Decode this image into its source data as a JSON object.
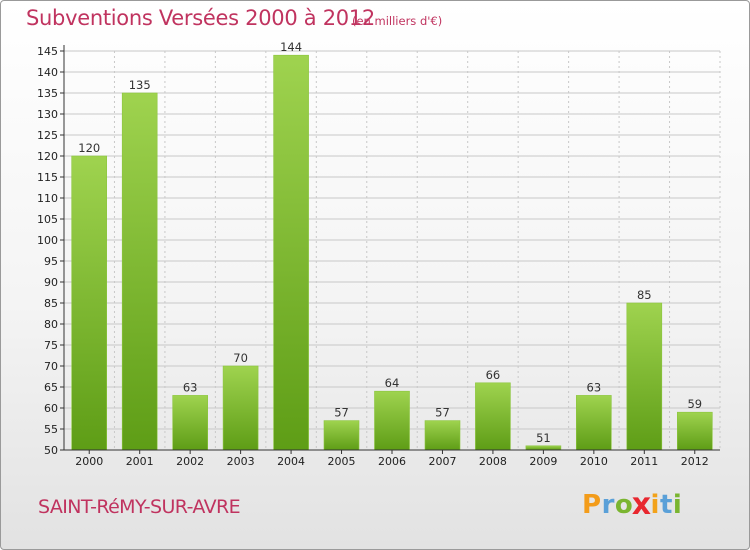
{
  "header": {
    "title": "Subventions Versées 2000 à 2012",
    "subtitle": "(en milliers d'€)"
  },
  "footer": {
    "commune": "SAINT-RéMY-SUR-AVRE",
    "brand_letters": [
      {
        "ch": "P",
        "color": "#f39c1a"
      },
      {
        "ch": "r",
        "color": "#5aa0d8"
      },
      {
        "ch": "o",
        "color": "#7ab530"
      },
      {
        "ch": "x",
        "color": "#e8272f"
      },
      {
        "ch": "i",
        "color": "#f2a21a"
      },
      {
        "ch": "t",
        "color": "#5aa0d8"
      },
      {
        "ch": "i",
        "color": "#7ab530"
      }
    ]
  },
  "colors": {
    "title": "#c0335f",
    "bar_light": "#9fd34f",
    "bar_dark": "#5e9d16",
    "grid": "#c8c8c8",
    "axis": "#333333"
  },
  "chart_data": {
    "type": "bar",
    "title": "Subventions Versées 2000 à 2012",
    "subtitle": "(en milliers d'€)",
    "xlabel": "",
    "ylabel": "",
    "categories": [
      "2000",
      "2001",
      "2002",
      "2003",
      "2004",
      "2005",
      "2006",
      "2007",
      "2008",
      "2009",
      "2010",
      "2011",
      "2012"
    ],
    "values": [
      120,
      135,
      63,
      70,
      144,
      57,
      64,
      57,
      66,
      51,
      63,
      85,
      59
    ],
    "ylim": [
      50,
      145
    ],
    "ytick_step": 5,
    "grid": true,
    "data_labels": true
  }
}
